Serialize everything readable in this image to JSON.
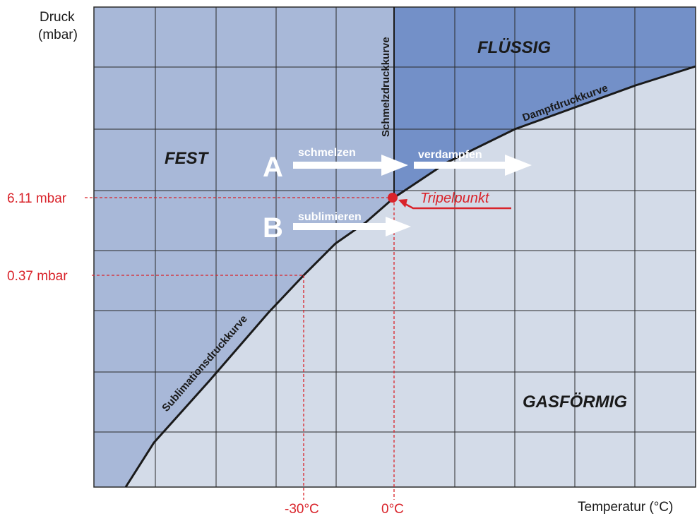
{
  "axes": {
    "y_label_line1": "Druck",
    "y_label_line2": "(mbar)",
    "x_label": "Temperatur (°C)"
  },
  "regions": {
    "solid": "FEST",
    "liquid": "FLÜSSIG",
    "gas": "GASFÖRMIG"
  },
  "curves": {
    "melting": "Schmelzdruckkurve",
    "vapor": "Dampfdruckkurve",
    "sublimation": "Sublimationsdruckkurve"
  },
  "markers": {
    "triple_point_pressure": "6.11 mbar",
    "sublimation_pressure": "0.37 mbar",
    "temp_minus30": "-30°C",
    "temp_zero": "0°C",
    "triple_point_label": "Tripelpunkt"
  },
  "processes": {
    "a_letter": "A",
    "a_step1": "schmelzen",
    "a_step2": "verdampfen",
    "b_letter": "B",
    "b_step1": "sublimieren"
  },
  "colors": {
    "solid": "#a8b8d8",
    "liquid": "#7390c8",
    "gas": "#d3dbe8",
    "accent": "#d9232a",
    "grid": "#2a2a2a"
  }
}
